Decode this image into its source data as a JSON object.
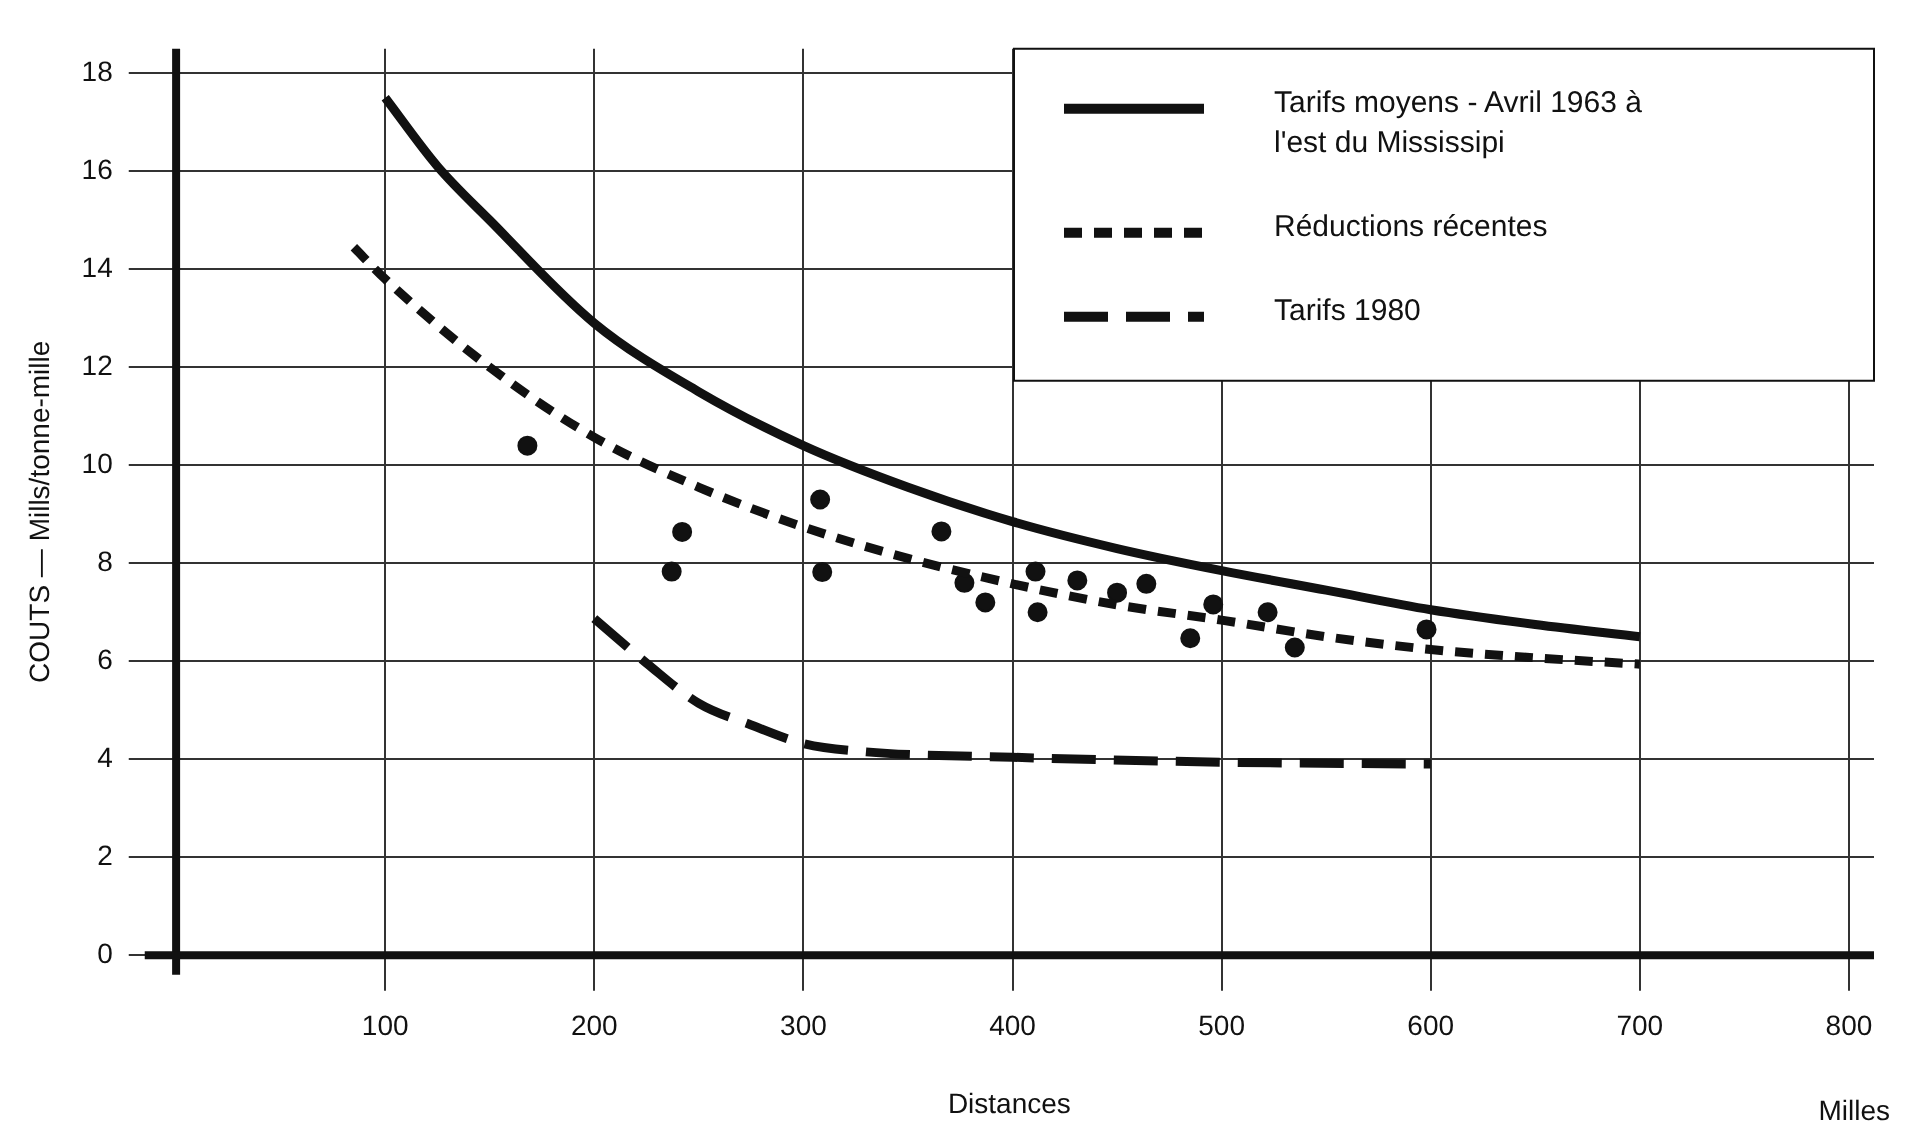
{
  "chart_data": {
    "type": "line",
    "xlabel": "Distances",
    "ylabel": "COUTS — Mills/tonne-mille",
    "annotations": [
      "Milles"
    ],
    "xlim": [
      -15,
      812
    ],
    "ylim": [
      -0.4,
      18.5
    ],
    "xticks": [
      100,
      200,
      300,
      400,
      500,
      600,
      700,
      800
    ],
    "yticks": [
      0,
      2,
      4,
      6,
      8,
      10,
      12,
      14,
      16,
      18
    ],
    "grid": true,
    "legend": "top right",
    "marker": "none",
    "series": [
      {
        "name": "Tarifs moyens - Avril 1963 à l'est du Mississipi",
        "color": "#111111",
        "line_style": "solid",
        "x": [
          100,
          125,
          150,
          200,
          250,
          300,
          350,
          400,
          450,
          500,
          550,
          600,
          650,
          700
        ],
        "values": [
          17.5,
          16.1,
          15.0,
          12.9,
          11.5,
          10.4,
          9.55,
          8.85,
          8.3,
          7.85,
          7.45,
          7.05,
          6.75,
          6.5
        ]
      },
      {
        "name": "Réductions récentes",
        "color": "#111111",
        "line_style": "dashed",
        "x": [
          85,
          100,
          150,
          200,
          250,
          300,
          350,
          400,
          450,
          500,
          550,
          600,
          650,
          700
        ],
        "values": [
          14.45,
          13.8,
          12.0,
          10.57,
          9.55,
          8.74,
          8.1,
          7.58,
          7.15,
          6.84,
          6.5,
          6.24,
          6.07,
          5.94
        ]
      },
      {
        "name": "Tarifs 1980",
        "color": "#111111",
        "line_style": "longdash",
        "x": [
          200,
          225,
          250,
          275,
          300,
          330,
          400,
          500,
          600
        ],
        "values": [
          6.87,
          5.96,
          5.14,
          4.7,
          4.32,
          4.15,
          4.04,
          3.94,
          3.9
        ]
      },
      {
        "type": "scatter",
        "color": "#111111",
        "marker": "circle",
        "x": [
          168,
          237,
          242,
          308,
          309,
          366,
          377,
          387,
          411,
          412,
          431,
          450,
          464,
          485,
          496,
          522,
          535,
          598
        ],
        "values": [
          10.4,
          7.83,
          8.64,
          9.3,
          7.82,
          8.65,
          7.6,
          7.2,
          7.83,
          7.0,
          7.65,
          7.4,
          7.58,
          6.47,
          7.16,
          7.0,
          6.28,
          6.65
        ]
      }
    ]
  }
}
